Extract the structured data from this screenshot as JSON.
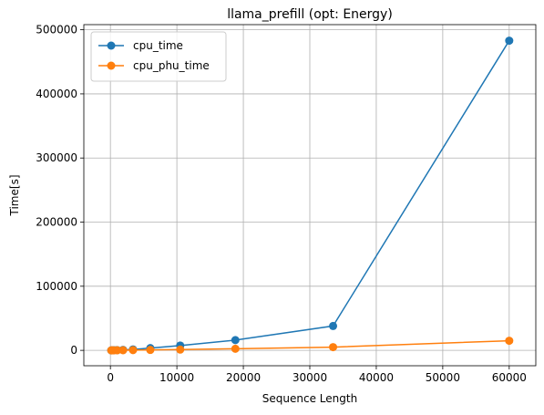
{
  "chart_data": {
    "type": "line",
    "title": "llama_prefill (opt: Energy)",
    "xlabel": "Sequence Length",
    "ylabel": "Time[s]",
    "xlim": [
      -4000,
      64000
    ],
    "ylim": [
      -24000,
      508000
    ],
    "xticks": [
      0,
      10000,
      20000,
      30000,
      40000,
      50000,
      60000
    ],
    "xtick_labels": [
      "0",
      "10000",
      "20000",
      "30000",
      "40000",
      "50000",
      "60000"
    ],
    "yticks": [
      0,
      100000,
      200000,
      300000,
      400000,
      500000
    ],
    "ytick_labels": [
      "0",
      "100000",
      "200000",
      "300000",
      "400000",
      "500000"
    ],
    "grid": true,
    "legend_position": "top-left",
    "series": [
      {
        "name": "cpu_time",
        "color": "#1f77b4",
        "marker": "circle",
        "x": [
          128,
          256,
          512,
          1024,
          1900,
          3400,
          6000,
          10500,
          18800,
          33500,
          60000
        ],
        "y": [
          0,
          100,
          200,
          400,
          800,
          1500,
          3500,
          7500,
          16000,
          38000,
          483000
        ]
      },
      {
        "name": "cpu_phu_time",
        "color": "#ff7f0e",
        "marker": "circle",
        "x": [
          128,
          256,
          512,
          1024,
          1900,
          3400,
          6000,
          10500,
          18800,
          33500,
          60000
        ],
        "y": [
          0,
          20,
          50,
          100,
          200,
          400,
          700,
          1200,
          2500,
          5000,
          15000
        ]
      }
    ]
  }
}
